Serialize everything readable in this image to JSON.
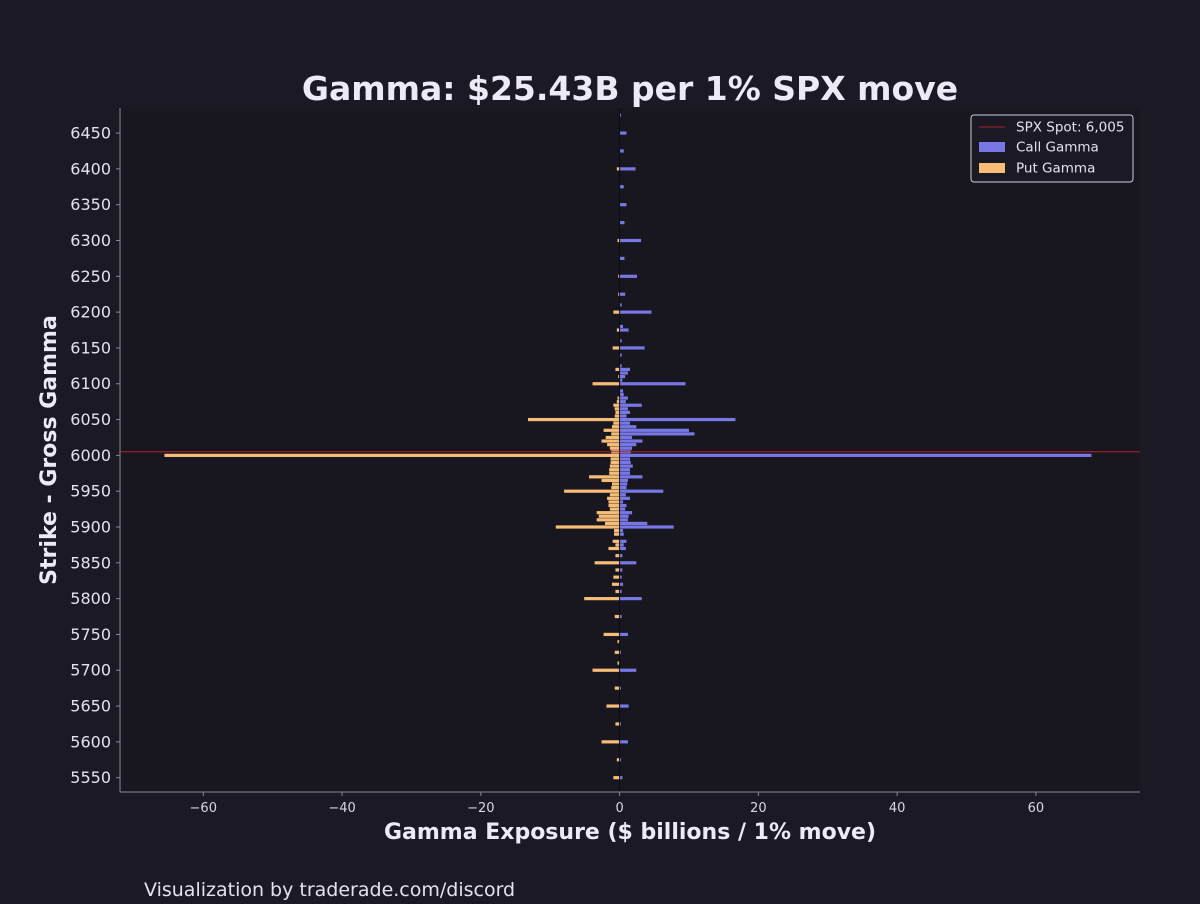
{
  "chart_data": {
    "type": "bar",
    "orientation": "horizontal",
    "title": "Gamma: $25.43B per 1% SPX move",
    "xlabel": "Gamma Exposure ($ billions / 1% move)",
    "ylabel": "Strike - Gross Gamma",
    "xlim": [
      -72,
      75
    ],
    "ylim": [
      5530,
      6485
    ],
    "x_ticks": [
      -60,
      -40,
      -20,
      0,
      20,
      40,
      60
    ],
    "x_tick_labels": [
      "−60",
      "−40",
      "−20",
      "0",
      "20",
      "40",
      "60"
    ],
    "y_ticks": [
      5550,
      5600,
      5650,
      5700,
      5750,
      5800,
      5850,
      5900,
      5950,
      6000,
      6050,
      6100,
      6150,
      6200,
      6250,
      6300,
      6350,
      6400,
      6450
    ],
    "y_tick_labels": [
      "5550",
      "5600",
      "5650",
      "5700",
      "5750",
      "5800",
      "5850",
      "5900",
      "5950",
      "6000",
      "6050",
      "6100",
      "6150",
      "6200",
      "6250",
      "6300",
      "6350",
      "6400",
      "6450"
    ],
    "spot": {
      "label": "SPX Spot: 6,005",
      "value": 6005,
      "color": "#b3202a"
    },
    "legend": {
      "position": "top-right"
    },
    "series": [
      {
        "name": "Call Gamma",
        "color": "#7777e6",
        "points": [
          [
            5550,
            0.4
          ],
          [
            5575,
            0.2
          ],
          [
            5600,
            1.2
          ],
          [
            5625,
            0.2
          ],
          [
            5650,
            1.3
          ],
          [
            5675,
            0.2
          ],
          [
            5700,
            2.4
          ],
          [
            5725,
            0.2
          ],
          [
            5750,
            1.2
          ],
          [
            5775,
            0.3
          ],
          [
            5800,
            3.2
          ],
          [
            5810,
            0.3
          ],
          [
            5820,
            0.5
          ],
          [
            5830,
            0.3
          ],
          [
            5840,
            0.4
          ],
          [
            5850,
            2.4
          ],
          [
            5860,
            0.4
          ],
          [
            5870,
            0.9
          ],
          [
            5875,
            0.6
          ],
          [
            5880,
            1.0
          ],
          [
            5890,
            0.6
          ],
          [
            5895,
            0.5
          ],
          [
            5900,
            7.8
          ],
          [
            5905,
            4.0
          ],
          [
            5910,
            1.2
          ],
          [
            5915,
            1.3
          ],
          [
            5920,
            1.8
          ],
          [
            5925,
            0.8
          ],
          [
            5930,
            1.0
          ],
          [
            5935,
            0.5
          ],
          [
            5940,
            1.5
          ],
          [
            5945,
            0.9
          ],
          [
            5950,
            6.3
          ],
          [
            5955,
            1.0
          ],
          [
            5960,
            1.1
          ],
          [
            5965,
            1.2
          ],
          [
            5970,
            3.3
          ],
          [
            5975,
            1.5
          ],
          [
            5980,
            1.5
          ],
          [
            5985,
            1.9
          ],
          [
            5990,
            1.6
          ],
          [
            5995,
            1.5
          ],
          [
            6000,
            68.0
          ],
          [
            6005,
            1.6
          ],
          [
            6010,
            1.8
          ],
          [
            6015,
            2.4
          ],
          [
            6020,
            3.3
          ],
          [
            6025,
            1.8
          ],
          [
            6030,
            10.8
          ],
          [
            6035,
            10.0
          ],
          [
            6040,
            2.4
          ],
          [
            6045,
            1.5
          ],
          [
            6050,
            16.7
          ],
          [
            6055,
            1.0
          ],
          [
            6060,
            1.5
          ],
          [
            6065,
            1.2
          ],
          [
            6070,
            3.2
          ],
          [
            6075,
            0.9
          ],
          [
            6080,
            1.2
          ],
          [
            6085,
            0.6
          ],
          [
            6090,
            0.5
          ],
          [
            6100,
            9.5
          ],
          [
            6105,
            0.4
          ],
          [
            6110,
            0.8
          ],
          [
            6115,
            1.2
          ],
          [
            6120,
            1.5
          ],
          [
            6125,
            0.3
          ],
          [
            6140,
            0.3
          ],
          [
            6150,
            3.6
          ],
          [
            6160,
            0.3
          ],
          [
            6175,
            1.3
          ],
          [
            6180,
            0.5
          ],
          [
            6200,
            4.6
          ],
          [
            6210,
            0.3
          ],
          [
            6225,
            0.8
          ],
          [
            6250,
            2.5
          ],
          [
            6275,
            0.7
          ],
          [
            6300,
            3.1
          ],
          [
            6325,
            0.7
          ],
          [
            6350,
            1.0
          ],
          [
            6375,
            0.6
          ],
          [
            6400,
            2.3
          ],
          [
            6425,
            0.6
          ],
          [
            6450,
            1.0
          ],
          [
            6475,
            0.2
          ]
        ]
      },
      {
        "name": "Put Gamma",
        "color": "#f5bd76",
        "points": [
          [
            5550,
            -0.9
          ],
          [
            5575,
            -0.4
          ],
          [
            5600,
            -2.6
          ],
          [
            5625,
            -0.6
          ],
          [
            5650,
            -1.9
          ],
          [
            5675,
            -0.7
          ],
          [
            5700,
            -3.9
          ],
          [
            5710,
            -0.3
          ],
          [
            5725,
            -0.7
          ],
          [
            5740,
            -0.3
          ],
          [
            5750,
            -2.3
          ],
          [
            5775,
            -0.7
          ],
          [
            5800,
            -5.1
          ],
          [
            5810,
            -0.6
          ],
          [
            5820,
            -1.1
          ],
          [
            5830,
            -0.9
          ],
          [
            5840,
            -0.6
          ],
          [
            5850,
            -3.6
          ],
          [
            5860,
            -0.6
          ],
          [
            5870,
            -1.6
          ],
          [
            5875,
            -0.6
          ],
          [
            5880,
            -1.0
          ],
          [
            5890,
            -0.8
          ],
          [
            5895,
            -0.8
          ],
          [
            5900,
            -9.2
          ],
          [
            5905,
            -2.1
          ],
          [
            5910,
            -3.3
          ],
          [
            5915,
            -3.0
          ],
          [
            5920,
            -3.3
          ],
          [
            5925,
            -1.4
          ],
          [
            5930,
            -1.6
          ],
          [
            5935,
            -1.6
          ],
          [
            5940,
            -1.8
          ],
          [
            5945,
            -1.4
          ],
          [
            5950,
            -8.0
          ],
          [
            5955,
            -1.2
          ],
          [
            5960,
            -1.1
          ],
          [
            5965,
            -2.6
          ],
          [
            5970,
            -4.4
          ],
          [
            5975,
            -1.5
          ],
          [
            5980,
            -1.5
          ],
          [
            5985,
            -1.4
          ],
          [
            5990,
            -1.3
          ],
          [
            5995,
            -1.3
          ],
          [
            6000,
            -65.6
          ],
          [
            6005,
            -1.2
          ],
          [
            6010,
            -1.4
          ],
          [
            6015,
            -1.8
          ],
          [
            6020,
            -2.6
          ],
          [
            6025,
            -2.0
          ],
          [
            6030,
            -1.2
          ],
          [
            6035,
            -2.3
          ],
          [
            6040,
            -1.1
          ],
          [
            6045,
            -0.9
          ],
          [
            6050,
            -13.2
          ],
          [
            6055,
            -0.7
          ],
          [
            6060,
            -0.6
          ],
          [
            6065,
            -0.7
          ],
          [
            6070,
            -0.9
          ],
          [
            6075,
            -0.4
          ],
          [
            6080,
            -0.3
          ],
          [
            6100,
            -3.9
          ],
          [
            6110,
            -0.2
          ],
          [
            6120,
            -0.6
          ],
          [
            6150,
            -1.0
          ],
          [
            6175,
            -0.4
          ],
          [
            6200,
            -0.9
          ],
          [
            6225,
            -0.2
          ],
          [
            6250,
            -0.2
          ],
          [
            6300,
            -0.3
          ],
          [
            6400,
            -0.4
          ]
        ]
      }
    ]
  },
  "footer": {
    "text": "Visualization by traderade.com/discord"
  }
}
